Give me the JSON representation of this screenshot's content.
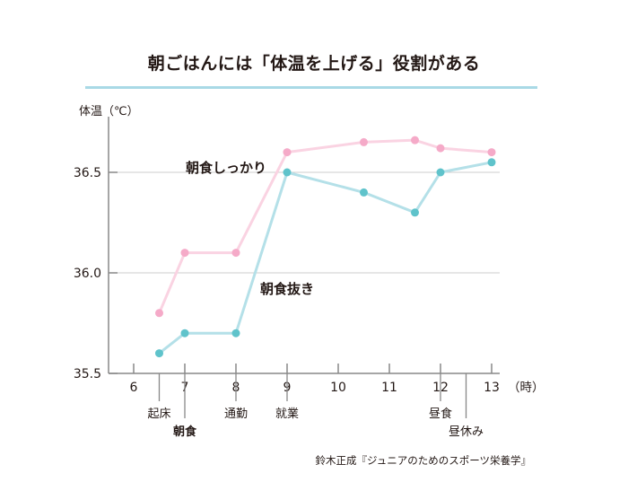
{
  "title": "朝ごはんには「体温を上げる」役割がある",
  "source": "鈴木正成『ジュニアのためのスポーツ栄養学』",
  "chart_data": {
    "type": "line",
    "ylabel": "体温（℃）",
    "xlabel": "（時）",
    "xlim": [
      5.5,
      13
    ],
    "ylim": [
      35.5,
      36.85
    ],
    "xticks": [
      6,
      7,
      8,
      9,
      10,
      11,
      12,
      13
    ],
    "yticks": [
      35.5,
      36.0,
      36.5
    ],
    "ytick_labels": [
      "35.5",
      "36.0",
      "36.5"
    ],
    "series": [
      {
        "name": "朝食しっかり",
        "color": "#f5aac8",
        "line_color": "#fad3e2",
        "x": [
          6.5,
          7,
          8,
          9,
          10.5,
          11.5,
          12,
          13
        ],
        "y": [
          35.8,
          36.1,
          36.1,
          36.6,
          36.65,
          36.66,
          36.62,
          36.6
        ]
      },
      {
        "name": "朝食抜き",
        "color": "#5fc3cb",
        "line_color": "#b4e0e8",
        "x": [
          6.5,
          7,
          8,
          9,
          10.5,
          11.5,
          12,
          13
        ],
        "y": [
          35.6,
          35.7,
          35.7,
          36.5,
          36.4,
          36.3,
          36.5,
          36.55
        ]
      }
    ],
    "events": [
      {
        "x": 6.5,
        "label": "起床",
        "bold": false,
        "row": 1
      },
      {
        "x": 7,
        "label": "朝食",
        "bold": true,
        "row": 2
      },
      {
        "x": 8,
        "label": "通勤",
        "bold": false,
        "row": 1
      },
      {
        "x": 9,
        "label": "就業",
        "bold": false,
        "row": 1
      },
      {
        "x": 12,
        "label": "昼食",
        "bold": false,
        "row": 1
      },
      {
        "x": 12.5,
        "label": "昼休み",
        "bold": false,
        "row": 2
      }
    ]
  }
}
